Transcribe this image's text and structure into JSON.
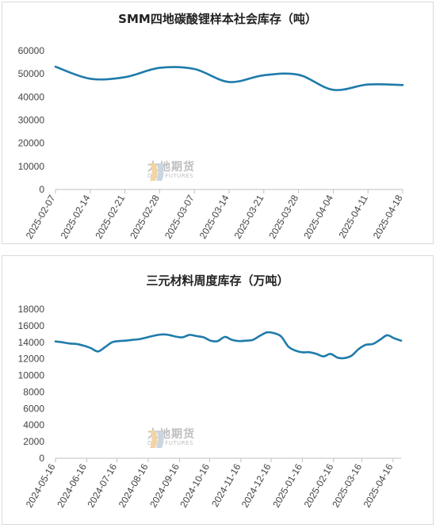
{
  "colors": {
    "line": "#1f7bab",
    "axis": "#bfbfbf",
    "text": "#444444"
  },
  "watermark": {
    "chinese": "大地期货",
    "english": "DADI FUTURES",
    "icon": "dadi-logo-icon"
  },
  "chart_data": [
    {
      "type": "line",
      "title": "SMM四地碳酸锂样本社会库存（吨）",
      "ylim": [
        0,
        60000
      ],
      "yticks": [
        "0",
        "10000",
        "20000",
        "30000",
        "40000",
        "50000",
        "60000"
      ],
      "xticks": [
        "2025-02-07",
        "2025-02-14",
        "2025-02-21",
        "2025-02-28",
        "2025-03-07",
        "2025-03-14",
        "2025-03-21",
        "2025-03-28",
        "2025-04-04",
        "2025-04-11",
        "2025-04-18"
      ],
      "x": [
        "2025-02-07",
        "2025-02-14",
        "2025-02-21",
        "2025-02-28",
        "2025-03-07",
        "2025-03-14",
        "2025-03-21",
        "2025-03-28",
        "2025-04-04",
        "2025-04-11",
        "2025-04-18"
      ],
      "series": [
        {
          "values": [
            53100,
            47900,
            48600,
            52600,
            52100,
            46500,
            49400,
            49600,
            43100,
            45400,
            45200
          ]
        }
      ],
      "grid": false
    },
    {
      "type": "line",
      "title": "三元材料周度库存（万吨）",
      "ylim": [
        0,
        18000
      ],
      "yticks": [
        "0",
        "2000",
        "4000",
        "6000",
        "8000",
        "10000",
        "12000",
        "14000",
        "16000",
        "18000"
      ],
      "xticks": [
        "2024-05-16",
        "2024-06-16",
        "2024-07-16",
        "2024-08-16",
        "2024-09-16",
        "2024-10-16",
        "2024-11-16",
        "2024-12-16",
        "2025-01-16",
        "2025-02-16",
        "2025-03-16",
        "2025-04-16"
      ],
      "x": [
        "2024-05-16",
        "2024-05-23",
        "2024-05-30",
        "2024-06-06",
        "2024-06-13",
        "2024-06-20",
        "2024-06-27",
        "2024-07-04",
        "2024-07-11",
        "2024-07-18",
        "2024-07-25",
        "2024-08-01",
        "2024-08-08",
        "2024-08-15",
        "2024-08-22",
        "2024-08-29",
        "2024-09-05",
        "2024-09-12",
        "2024-09-19",
        "2024-09-26",
        "2024-10-03",
        "2024-10-10",
        "2024-10-17",
        "2024-10-24",
        "2024-10-31",
        "2024-11-07",
        "2024-11-14",
        "2024-11-21",
        "2024-11-28",
        "2024-12-05",
        "2024-12-12",
        "2024-12-19",
        "2024-12-26",
        "2025-01-02",
        "2025-01-09",
        "2025-01-16",
        "2025-01-23",
        "2025-01-30",
        "2025-02-06",
        "2025-02-13",
        "2025-02-20",
        "2025-02-27",
        "2025-03-06",
        "2025-03-13",
        "2025-03-20",
        "2025-03-27",
        "2025-04-03",
        "2025-04-10",
        "2025-04-17",
        "2025-04-24"
      ],
      "series": [
        {
          "values": [
            14100,
            14000,
            13850,
            13800,
            13600,
            13300,
            12900,
            13400,
            14000,
            14150,
            14200,
            14300,
            14400,
            14600,
            14800,
            14950,
            14900,
            14700,
            14600,
            14900,
            14750,
            14600,
            14200,
            14150,
            14650,
            14300,
            14150,
            14200,
            14300,
            14800,
            15200,
            15100,
            14700,
            13500,
            13000,
            12800,
            12800,
            12600,
            12300,
            12600,
            12150,
            12100,
            12400,
            13200,
            13700,
            13800,
            14300,
            14850,
            14500,
            14200
          ]
        }
      ],
      "grid": false
    }
  ]
}
